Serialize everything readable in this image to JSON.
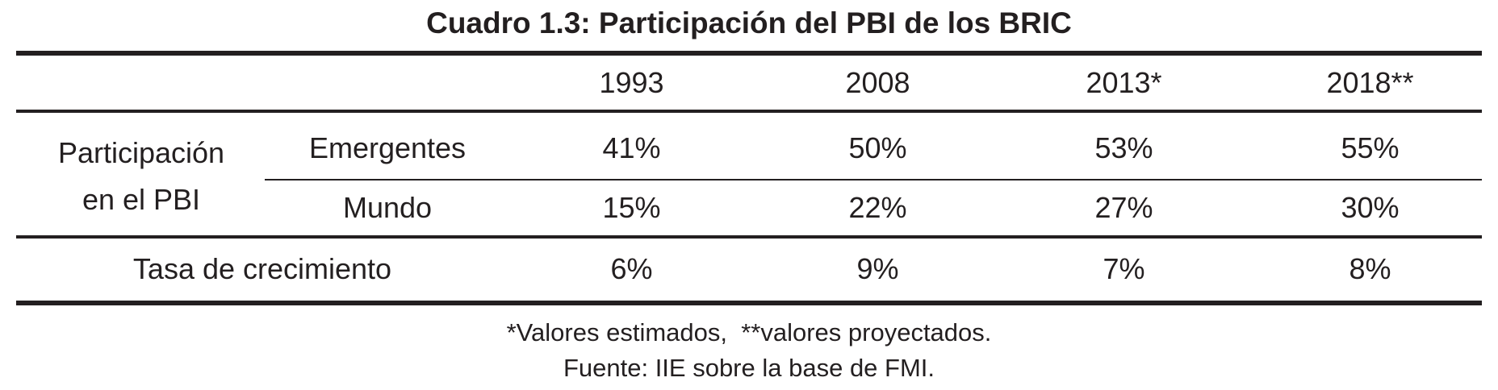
{
  "chart_data": {
    "type": "table",
    "title": "Cuadro 1.3: Participación del PBI de los BRIC",
    "columns": [
      "1993",
      "2008",
      "2013*",
      "2018**"
    ],
    "group_label_line1": "Participación",
    "group_label_line2": "en el PBI",
    "rows": [
      {
        "label": "Emergentes",
        "values": [
          "41%",
          "50%",
          "53%",
          "55%"
        ]
      },
      {
        "label": "Mundo",
        "values": [
          "15%",
          "22%",
          "27%",
          "30%"
        ]
      },
      {
        "label": "Tasa de crecimiento",
        "values": [
          "6%",
          "9%",
          "7%",
          "8%"
        ]
      }
    ],
    "footnote": "*Valores estimados,  **valores proyectados.",
    "source": "Fuente: IIE sobre la base de FMI."
  }
}
